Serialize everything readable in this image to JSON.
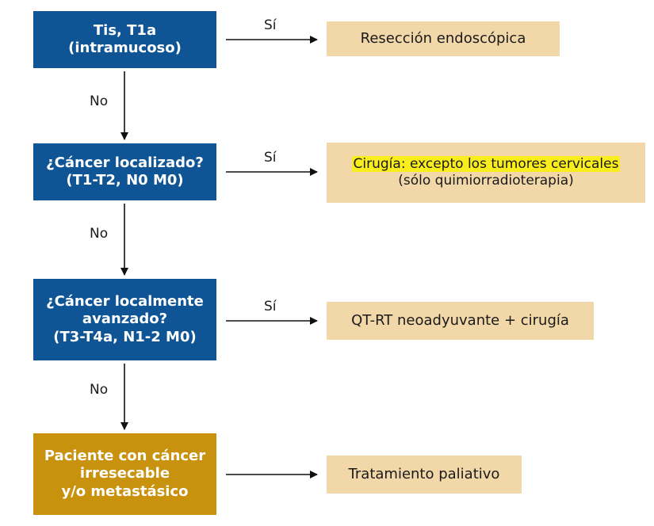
{
  "nodes": {
    "q1": {
      "line1": "Tis, T1a",
      "line2": "(intramucoso)"
    },
    "q2": {
      "line1": "¿Cáncer localizado?",
      "line2": "(T1-T2, N0 M0)"
    },
    "q3": {
      "line1": "¿Cáncer localmente",
      "line2": "avanzado?",
      "line3": "(T3-T4a, N1-2 M0)"
    },
    "q4": {
      "line1": "Paciente con cáncer",
      "line2": "irresecable",
      "line3": "y/o metastásico"
    }
  },
  "results": {
    "r1": {
      "line1": "Resección endoscópica"
    },
    "r2": {
      "line1": "Cirugía: excepto los tumores cervicales",
      "line2": "(sólo quimiorradioterapia)"
    },
    "r3": {
      "line1": "QT-RT neoadyuvante + cirugía"
    },
    "r4": {
      "line1": "Tratamiento paliativo"
    }
  },
  "edge_labels": {
    "yes": "Sí",
    "no": "No"
  },
  "colors": {
    "question_box": "#0f5596",
    "terminal_box": "#c8920e",
    "result_box": "#f2d7a9",
    "highlight": "#f9ed1e"
  }
}
